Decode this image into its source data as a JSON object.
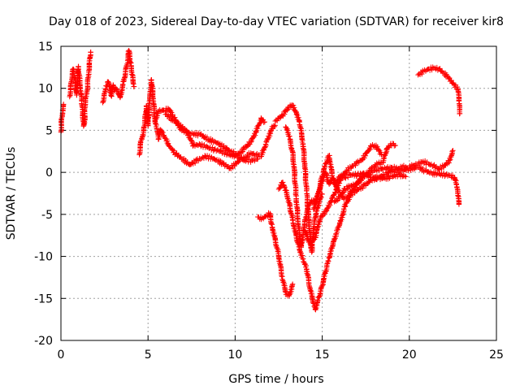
{
  "chart_data": {
    "type": "scatter",
    "title": "Day 018 of 2023, Sidereal Day-to-day VTEC variation (SDTVAR) for receiver kir8",
    "xlabel": "GPS time / hours",
    "ylabel": "SDTVAR / TECUs",
    "xlim": [
      0,
      25
    ],
    "ylim": [
      -20,
      15
    ],
    "xticks": [
      0,
      5,
      10,
      15,
      20,
      25
    ],
    "yticks": [
      -20,
      -15,
      -10,
      -5,
      0,
      5,
      10,
      15
    ],
    "grid": true,
    "legend": "none",
    "marker": "+",
    "color": "#ff0000",
    "series": [
      {
        "segments": [
          [
            [
              0.0,
              4.8
            ],
            [
              0.05,
              6.5
            ],
            [
              0.1,
              7.4
            ],
            [
              0.15,
              8.1
            ]
          ],
          [
            [
              0.5,
              9.0
            ],
            [
              0.6,
              10.8
            ],
            [
              0.7,
              12.3
            ],
            [
              0.8,
              11.0
            ],
            [
              0.9,
              9.2
            ],
            [
              1.0,
              12.6
            ],
            [
              1.1,
              10.4
            ],
            [
              1.2,
              8.5
            ],
            [
              1.25,
              6.8
            ],
            [
              1.3,
              5.5
            ],
            [
              1.35,
              5.8
            ],
            [
              1.4,
              8.9
            ],
            [
              1.5,
              9.7
            ],
            [
              1.6,
              12.1
            ],
            [
              1.7,
              14.3
            ]
          ],
          [
            [
              2.4,
              8.3
            ],
            [
              2.5,
              9.4
            ],
            [
              2.6,
              10.3
            ],
            [
              2.7,
              10.8
            ],
            [
              2.8,
              10.2
            ],
            [
              2.9,
              9.1
            ],
            [
              3.0,
              10.4
            ],
            [
              3.1,
              9.8
            ],
            [
              3.2,
              9.9
            ],
            [
              3.4,
              8.9
            ],
            [
              3.6,
              10.8
            ],
            [
              3.8,
              12.9
            ],
            [
              3.9,
              14.5
            ],
            [
              4.0,
              13.0
            ],
            [
              4.1,
              11.6
            ],
            [
              4.2,
              10.2
            ]
          ],
          [
            [
              4.5,
              2.1
            ],
            [
              4.6,
              3.8
            ],
            [
              4.7,
              4.5
            ],
            [
              4.8,
              5.6
            ],
            [
              4.9,
              7.9
            ],
            [
              5.0,
              5.6
            ],
            [
              5.1,
              8.8
            ],
            [
              5.2,
              11.0
            ],
            [
              5.3,
              8.8
            ],
            [
              5.4,
              6.1
            ],
            [
              5.5,
              5.2
            ],
            [
              5.6,
              4.0
            ],
            [
              5.7,
              5.1
            ],
            [
              5.8,
              4.7
            ],
            [
              6.0,
              4.0
            ],
            [
              6.3,
              2.9
            ],
            [
              6.6,
              2.2
            ],
            [
              7.0,
              1.6
            ],
            [
              7.4,
              0.9
            ],
            [
              7.8,
              1.4
            ],
            [
              8.3,
              1.9
            ],
            [
              8.8,
              1.6
            ],
            [
              9.3,
              1.0
            ],
            [
              9.7,
              0.5
            ],
            [
              10.0,
              1.0
            ],
            [
              10.3,
              1.6
            ],
            [
              10.6,
              1.8
            ],
            [
              10.9,
              2.3
            ],
            [
              11.2,
              2.1
            ],
            [
              11.5,
              1.9
            ],
            [
              11.8,
              3.6
            ],
            [
              12.1,
              5.2
            ],
            [
              12.3,
              5.6
            ]
          ],
          [
            [
              5.4,
              6.2
            ],
            [
              5.6,
              7.3
            ],
            [
              5.9,
              7.4
            ],
            [
              6.2,
              7.5
            ],
            [
              6.5,
              6.5
            ],
            [
              6.8,
              5.6
            ],
            [
              7.2,
              5.0
            ],
            [
              7.6,
              3.2
            ],
            [
              8.0,
              3.3
            ],
            [
              8.4,
              3.0
            ],
            [
              8.8,
              2.7
            ],
            [
              9.2,
              2.5
            ],
            [
              9.6,
              2.1
            ],
            [
              10.0,
              2.0
            ],
            [
              10.3,
              2.4
            ],
            [
              10.6,
              3.0
            ],
            [
              10.9,
              3.6
            ],
            [
              11.2,
              4.8
            ],
            [
              11.5,
              6.4
            ],
            [
              11.7,
              6.0
            ]
          ],
          [
            [
              6.0,
              6.9
            ],
            [
              6.5,
              6.1
            ],
            [
              7.0,
              5.0
            ],
            [
              7.5,
              4.6
            ],
            [
              8.0,
              4.5
            ],
            [
              8.5,
              3.9
            ],
            [
              9.0,
              3.5
            ],
            [
              9.5,
              2.8
            ],
            [
              10.0,
              2.2
            ],
            [
              10.5,
              1.4
            ],
            [
              11.0,
              1.4
            ],
            [
              11.3,
              1.6
            ]
          ],
          [
            [
              11.3,
              -5.3
            ],
            [
              11.5,
              -5.6
            ],
            [
              11.8,
              -5.1
            ],
            [
              12.0,
              -4.9
            ],
            [
              12.1,
              -6.2
            ],
            [
              12.3,
              -8.0
            ],
            [
              12.5,
              -9.9
            ],
            [
              12.7,
              -12.4
            ],
            [
              12.9,
              -14.3
            ],
            [
              13.1,
              -14.7
            ],
            [
              13.3,
              -13.3
            ]
          ],
          [
            [
              12.5,
              -2.0
            ],
            [
              12.7,
              -1.2
            ],
            [
              12.9,
              -2.1
            ],
            [
              13.1,
              -3.6
            ],
            [
              13.3,
              -5.7
            ],
            [
              13.5,
              -7.5
            ],
            [
              13.7,
              -9.2
            ],
            [
              13.9,
              -10.3
            ],
            [
              14.1,
              -11.5
            ],
            [
              14.3,
              -13.8
            ],
            [
              14.5,
              -15.6
            ],
            [
              14.6,
              -16.3
            ],
            [
              14.8,
              -14.9
            ],
            [
              15.0,
              -13.5
            ],
            [
              15.2,
              -11.7
            ],
            [
              15.4,
              -10.2
            ],
            [
              15.6,
              -8.7
            ],
            [
              15.8,
              -7.3
            ],
            [
              16.0,
              -6.2
            ],
            [
              16.3,
              -4.1
            ],
            [
              16.6,
              -2.7
            ],
            [
              17.0,
              -2.1
            ],
            [
              17.4,
              -1.6
            ],
            [
              17.8,
              -0.9
            ],
            [
              18.2,
              -0.6
            ],
            [
              18.6,
              -0.3
            ],
            [
              19.0,
              0.3
            ]
          ],
          [
            [
              12.3,
              6.1
            ],
            [
              12.5,
              6.4
            ],
            [
              12.7,
              6.8
            ],
            [
              12.9,
              7.3
            ],
            [
              13.1,
              7.8
            ],
            [
              13.3,
              8.0
            ],
            [
              13.5,
              7.2
            ],
            [
              13.7,
              6.0
            ],
            [
              13.9,
              3.4
            ],
            [
              14.0,
              0.8
            ],
            [
              14.1,
              -2.2
            ],
            [
              14.2,
              -5.0
            ],
            [
              14.3,
              -7.6
            ],
            [
              14.4,
              -9.5
            ],
            [
              14.5,
              -6.6
            ],
            [
              14.6,
              -5.4
            ],
            [
              14.8,
              -3.7
            ],
            [
              15.0,
              -2.6
            ]
          ],
          [
            [
              12.9,
              5.4
            ],
            [
              13.1,
              4.3
            ],
            [
              13.3,
              2.4
            ],
            [
              13.4,
              0.0
            ],
            [
              13.5,
              -2.8
            ],
            [
              13.6,
              -5.5
            ],
            [
              13.7,
              -7.6
            ],
            [
              13.8,
              -8.9
            ],
            [
              13.9,
              -7.4
            ],
            [
              14.0,
              -5.8
            ],
            [
              14.2,
              -4.0
            ],
            [
              14.4,
              -3.3
            ],
            [
              14.6,
              -3.7
            ],
            [
              14.8,
              -2.4
            ],
            [
              15.0,
              -1.0
            ],
            [
              15.2,
              0.0
            ],
            [
              15.4,
              -1.4
            ],
            [
              15.6,
              -0.7
            ],
            [
              15.8,
              -1.3
            ],
            [
              16.0,
              -0.5
            ],
            [
              16.3,
              -0.6
            ],
            [
              16.6,
              -0.3
            ],
            [
              17.0,
              -0.3
            ],
            [
              17.4,
              -0.1
            ],
            [
              17.8,
              -0.6
            ],
            [
              18.2,
              -0.7
            ],
            [
              18.6,
              -0.7
            ],
            [
              19.0,
              -0.5
            ],
            [
              19.4,
              -0.3
            ],
            [
              19.8,
              -0.5
            ]
          ],
          [
            [
              14.0,
              -7.0
            ],
            [
              14.3,
              -8.5
            ],
            [
              14.6,
              -7.7
            ],
            [
              14.9,
              -5.3
            ],
            [
              15.2,
              -4.7
            ],
            [
              15.5,
              -3.5
            ],
            [
              15.8,
              -2.1
            ],
            [
              16.1,
              -0.6
            ],
            [
              16.4,
              0.2
            ],
            [
              16.7,
              0.7
            ],
            [
              17.0,
              1.1
            ],
            [
              17.3,
              1.6
            ],
            [
              17.6,
              2.5
            ],
            [
              17.8,
              3.1
            ],
            [
              18.0,
              3.2
            ],
            [
              18.2,
              2.8
            ],
            [
              18.4,
              2.1
            ]
          ],
          [
            [
              14.5,
              -4.4
            ],
            [
              14.8,
              -2.3
            ],
            [
              15.0,
              -0.4
            ],
            [
              15.2,
              1.0
            ],
            [
              15.4,
              2.0
            ],
            [
              15.6,
              -0.7
            ],
            [
              15.8,
              -1.7
            ],
            [
              16.0,
              -2.4
            ],
            [
              16.2,
              -3.0
            ],
            [
              16.4,
              -3.1
            ],
            [
              16.6,
              -2.5
            ],
            [
              16.8,
              -1.9
            ],
            [
              17.0,
              -1.4
            ],
            [
              17.3,
              -0.6
            ],
            [
              17.6,
              -0.1
            ],
            [
              17.9,
              0.6
            ],
            [
              18.2,
              1.0
            ],
            [
              18.5,
              1.2
            ],
            [
              18.7,
              2.8
            ],
            [
              18.9,
              3.2
            ],
            [
              19.1,
              3.4
            ],
            [
              19.2,
              3.2
            ]
          ],
          [
            [
              15.7,
              -3.5
            ],
            [
              16.0,
              -2.9
            ],
            [
              16.3,
              -2.0
            ],
            [
              16.6,
              -1.6
            ],
            [
              16.9,
              -1.5
            ],
            [
              17.2,
              -0.8
            ],
            [
              17.5,
              -0.3
            ],
            [
              17.8,
              0.0
            ],
            [
              18.1,
              0.3
            ],
            [
              18.4,
              0.4
            ],
            [
              18.7,
              0.5
            ],
            [
              19.0,
              0.6
            ],
            [
              19.3,
              0.4
            ],
            [
              19.6,
              0.7
            ],
            [
              19.9,
              0.5
            ],
            [
              20.2,
              0.8
            ],
            [
              20.5,
              1.0
            ],
            [
              20.8,
              1.3
            ],
            [
              21.1,
              1.0
            ],
            [
              21.4,
              0.8
            ],
            [
              21.7,
              0.4
            ],
            [
              22.0,
              0.8
            ],
            [
              22.3,
              1.4
            ],
            [
              22.5,
              2.6
            ]
          ],
          [
            [
              19.0,
              0.1
            ],
            [
              19.5,
              0.2
            ],
            [
              20.0,
              0.4
            ],
            [
              20.5,
              0.6
            ],
            [
              20.9,
              0.2
            ],
            [
              21.3,
              -0.1
            ],
            [
              21.7,
              -0.2
            ],
            [
              22.1,
              -0.3
            ],
            [
              22.4,
              -0.4
            ],
            [
              22.6,
              -0.6
            ],
            [
              22.7,
              -1.4
            ],
            [
              22.8,
              -2.8
            ],
            [
              22.85,
              -3.8
            ]
          ],
          [
            [
              20.5,
              11.6
            ],
            [
              20.8,
              12.0
            ],
            [
              21.1,
              12.3
            ],
            [
              21.4,
              12.4
            ],
            [
              21.7,
              12.3
            ],
            [
              22.0,
              11.8
            ],
            [
              22.2,
              11.4
            ],
            [
              22.4,
              10.9
            ],
            [
              22.6,
              10.4
            ],
            [
              22.8,
              9.9
            ],
            [
              22.85,
              8.5
            ],
            [
              22.9,
              7.0
            ]
          ]
        ]
      }
    ]
  }
}
